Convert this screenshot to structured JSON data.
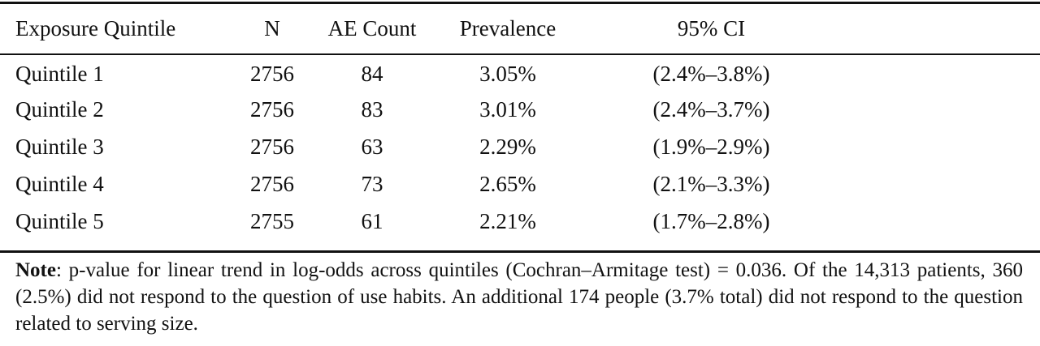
{
  "table": {
    "headers": [
      "Exposure Quintile",
      "N",
      "AE Count",
      "Prevalence",
      "95% CI"
    ],
    "rows": [
      [
        "Quintile 1",
        "2756",
        "84",
        "3.05%",
        "(2.4%–3.8%)"
      ],
      [
        "Quintile 2",
        "2756",
        "83",
        "3.01%",
        "(2.4%–3.7%)"
      ],
      [
        "Quintile 3",
        "2756",
        "63",
        "2.29%",
        "(1.9%–2.9%)"
      ],
      [
        "Quintile 4",
        "2756",
        "73",
        "2.65%",
        "(2.1%–3.3%)"
      ],
      [
        "Quintile 5",
        "2755",
        "61",
        "2.21%",
        "(1.7%–2.8%)"
      ]
    ]
  },
  "note": {
    "label": "Note",
    "text": ": p-value for linear trend in log-odds across quintiles (Cochran–Armitage test) = 0.036. Of the 14,313 patients, 360 (2.5%) did not respond to the question of use habits. An additional 174 people (3.7% total) did not respond to the question related to serving size."
  }
}
